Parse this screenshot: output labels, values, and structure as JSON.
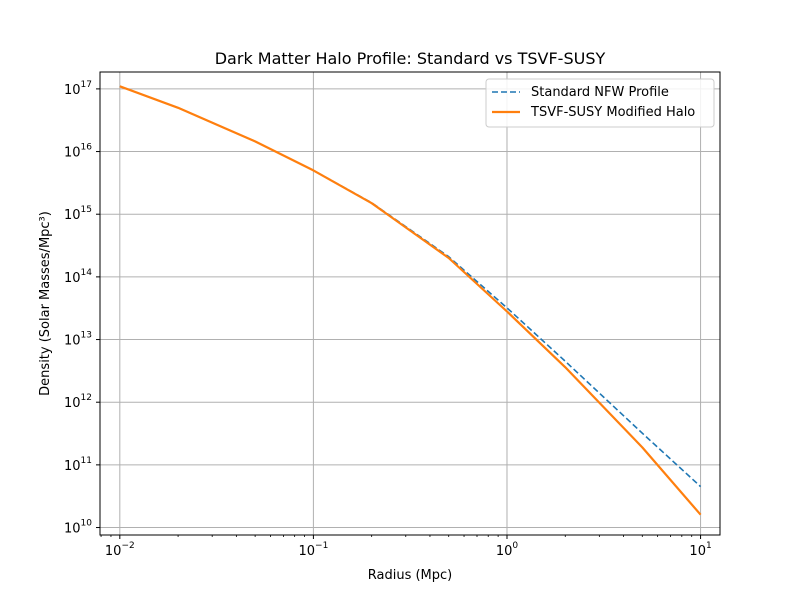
{
  "chart_data": {
    "type": "line",
    "title": "Dark Matter Halo Profile: Standard vs TSVF-SUSY",
    "xlabel": "Radius (Mpc)",
    "ylabel": "Density (Solar Masses/Mpc³)",
    "xscale": "log",
    "yscale": "log",
    "xlim": [
      0.0079,
      12.6
    ],
    "ylim": [
      7600000000.0,
      1.86e+17
    ],
    "grid": true,
    "legend_position": "top-right",
    "x_ticks": [
      {
        "value": 0.01,
        "base": "10",
        "exp": "−2"
      },
      {
        "value": 0.1,
        "base": "10",
        "exp": "−1"
      },
      {
        "value": 1,
        "base": "10",
        "exp": "0"
      },
      {
        "value": 10,
        "base": "10",
        "exp": "1"
      }
    ],
    "y_ticks": [
      {
        "value": 10000000000.0,
        "base": "10",
        "exp": "10"
      },
      {
        "value": 100000000000.0,
        "base": "10",
        "exp": "11"
      },
      {
        "value": 1000000000000.0,
        "base": "10",
        "exp": "12"
      },
      {
        "value": 10000000000000.0,
        "base": "10",
        "exp": "13"
      },
      {
        "value": 100000000000000.0,
        "base": "10",
        "exp": "14"
      },
      {
        "value": 1000000000000000.0,
        "base": "10",
        "exp": "15"
      },
      {
        "value": 1e+16,
        "base": "10",
        "exp": "16"
      },
      {
        "value": 1e+17,
        "base": "10",
        "exp": "17"
      }
    ],
    "series": [
      {
        "name": "Standard NFW Profile",
        "color": "#1f77b4",
        "style": "dashed",
        "x": [
          0.01,
          0.02,
          0.05,
          0.1,
          0.2,
          0.5,
          1,
          2,
          5,
          10
        ],
        "y": [
          1.1e+17,
          5e+16,
          1.45e+16,
          5000000000000000.0,
          1520000000000000.0,
          210000000000000.0,
          32000000000000.0,
          4500000000000.0,
          320000000000.0,
          45000000000.0
        ]
      },
      {
        "name": "TSVF-SUSY Modified Halo",
        "color": "#ff7f0e",
        "style": "solid",
        "x": [
          0.01,
          0.02,
          0.05,
          0.1,
          0.2,
          0.5,
          1,
          2,
          5,
          10
        ],
        "y": [
          1.1e+17,
          5e+16,
          1.45e+16,
          5000000000000000.0,
          1500000000000000.0,
          200000000000000.0,
          28000000000000.0,
          3600000000000.0,
          190000000000.0,
          16000000000.0
        ]
      }
    ]
  }
}
